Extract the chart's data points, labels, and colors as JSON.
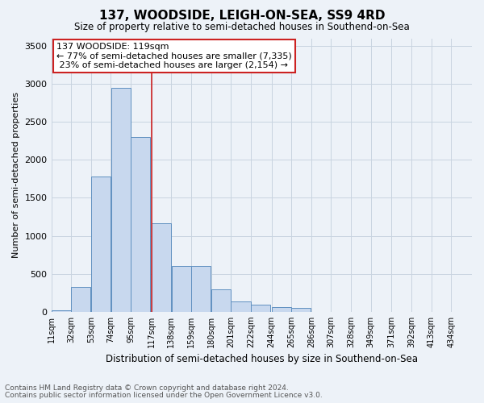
{
  "title": "137, WOODSIDE, LEIGH-ON-SEA, SS9 4RD",
  "subtitle": "Size of property relative to semi-detached houses in Southend-on-Sea",
  "xlabel": "Distribution of semi-detached houses by size in Southend-on-Sea",
  "ylabel": "Number of semi-detached properties",
  "footnote1": "Contains HM Land Registry data © Crown copyright and database right 2024.",
  "footnote2": "Contains public sector information licensed under the Open Government Licence v3.0.",
  "annotation_title": "137 WOODSIDE: 119sqm",
  "annotation_line1": "← 77% of semi-detached houses are smaller (7,335)",
  "annotation_line2": " 23% of semi-detached houses are larger (2,154) →",
  "marker_value": 117,
  "bar_color": "#c8d8ee",
  "bar_edge_color": "#6090c0",
  "marker_color": "#cc2222",
  "annotation_box_edge_color": "#cc2222",
  "grid_color": "#c8d4e0",
  "background_color": "#edf2f8",
  "categories": [
    "11sqm",
    "32sqm",
    "53sqm",
    "74sqm",
    "95sqm",
    "117sqm",
    "138sqm",
    "159sqm",
    "180sqm",
    "201sqm",
    "222sqm",
    "244sqm",
    "265sqm",
    "286sqm",
    "307sqm",
    "328sqm",
    "349sqm",
    "371sqm",
    "392sqm",
    "413sqm",
    "434sqm"
  ],
  "bin_starts": [
    11,
    32,
    53,
    74,
    95,
    117,
    138,
    159,
    180,
    201,
    222,
    244,
    265,
    286,
    307,
    328,
    349,
    371,
    392,
    413,
    434
  ],
  "bin_width": 21,
  "values": [
    15,
    330,
    1780,
    2950,
    2300,
    1170,
    600,
    600,
    295,
    140,
    90,
    65,
    50,
    0,
    0,
    0,
    0,
    0,
    0,
    0,
    0
  ],
  "ylim": [
    0,
    3600
  ],
  "yticks": [
    0,
    500,
    1000,
    1500,
    2000,
    2500,
    3000,
    3500
  ],
  "title_fontsize": 11,
  "subtitle_fontsize": 8.5,
  "ylabel_fontsize": 8,
  "xlabel_fontsize": 8.5,
  "annotation_fontsize": 8,
  "footnote_fontsize": 6.5,
  "tick_fontsize": 8,
  "xtick_fontsize": 7
}
